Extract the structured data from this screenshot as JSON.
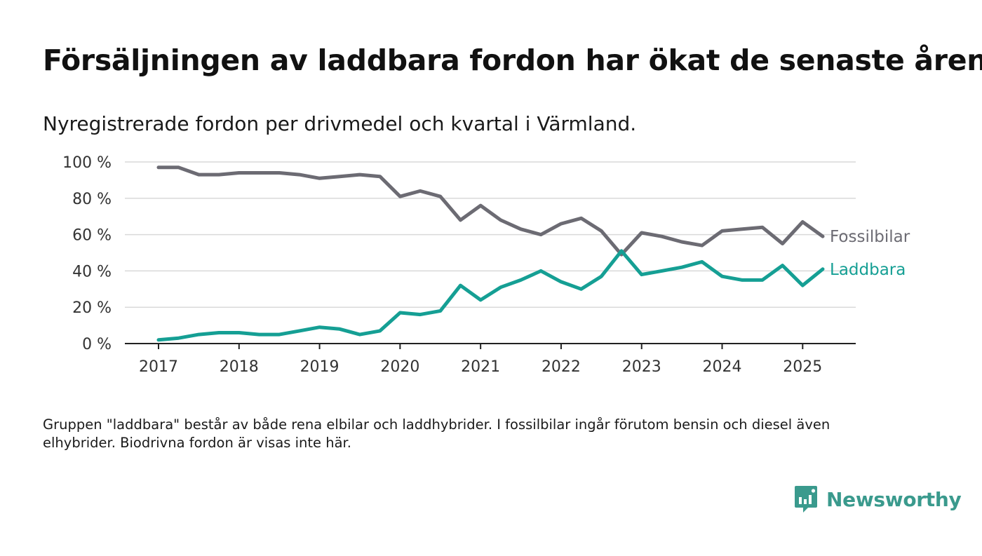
{
  "title": "Försäljningen av laddbara fordon har ökat de senaste åren",
  "subtitle": "Nyregistrerade fordon per drivmedel och kvartal i Värmland.",
  "footnote": "Gruppen \"laddbara\" består av både rena elbilar och laddhybrider. I fossilbilar ingår förutom bensin och diesel även elhybrider. Biodrivna fordon är visas inte här.",
  "brand": {
    "name": "Newsworthy",
    "icon": "newsworthy-logo-icon",
    "color": "#3a9a8d"
  },
  "chart_data": {
    "type": "line",
    "x": [
      2017.0,
      2017.25,
      2017.5,
      2017.75,
      2018.0,
      2018.25,
      2018.5,
      2018.75,
      2019.0,
      2019.25,
      2019.5,
      2019.75,
      2020.0,
      2020.25,
      2020.5,
      2020.75,
      2021.0,
      2021.25,
      2021.5,
      2021.75,
      2022.0,
      2022.25,
      2022.5,
      2022.75,
      2023.0,
      2023.25,
      2023.5,
      2023.75,
      2024.0,
      2024.25,
      2024.5,
      2024.75,
      2025.0,
      2025.25
    ],
    "x_ticks": [
      "2017",
      "2018",
      "2019",
      "2020",
      "2021",
      "2022",
      "2023",
      "2024",
      "2025"
    ],
    "y_ticks": [
      "0 %",
      "20 %",
      "40 %",
      "60 %",
      "80 %",
      "100 %"
    ],
    "ylim": [
      0,
      100
    ],
    "grid": true,
    "series": [
      {
        "name": "Fossilbilar",
        "color": "#6c6b73",
        "values": [
          97,
          97,
          93,
          93,
          94,
          94,
          94,
          93,
          91,
          92,
          93,
          92,
          81,
          84,
          81,
          68,
          76,
          68,
          63,
          60,
          66,
          69,
          62,
          49,
          61,
          59,
          56,
          54,
          62,
          63,
          64,
          55,
          67,
          59
        ]
      },
      {
        "name": "Laddbara",
        "color": "#159f94",
        "values": [
          2,
          3,
          5,
          6,
          6,
          5,
          5,
          7,
          9,
          8,
          5,
          7,
          17,
          16,
          18,
          32,
          24,
          31,
          35,
          40,
          34,
          30,
          37,
          51,
          38,
          40,
          42,
          45,
          37,
          35,
          35,
          43,
          32,
          41
        ]
      }
    ]
  }
}
